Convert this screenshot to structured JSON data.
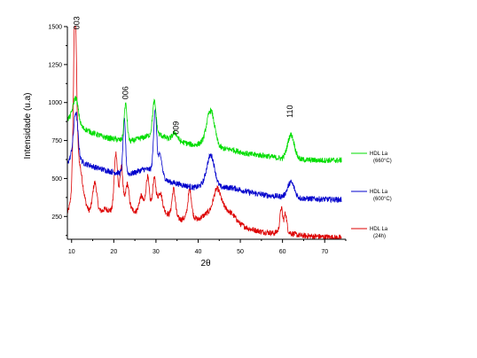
{
  "chart_data": {
    "type": "line",
    "xlabel": "2θ",
    "ylabel": "Intensidade (u.a)",
    "xlim": [
      9,
      75
    ],
    "ylim": [
      100,
      1500
    ],
    "x_ticks": [
      10,
      20,
      30,
      40,
      50,
      60,
      70
    ],
    "x_tick_labels": [
      "10",
      "20",
      "30",
      "40",
      "50",
      "60",
      "70"
    ],
    "y_ticks": [
      250,
      500,
      750,
      1000,
      1250,
      1500
    ],
    "grid": false,
    "legend_position": "right",
    "peak_labels": [
      {
        "text": "003",
        "x": 11.2,
        "y": 1480
      },
      {
        "text": "006",
        "x": 22.8,
        "y": 1020
      },
      {
        "text": "009",
        "x": 34.8,
        "y": 790
      },
      {
        "text": "110",
        "x": 61.8,
        "y": 900
      }
    ],
    "series": [
      {
        "name": "HDL La (24h)",
        "legend_lines": [
          "HDL La",
          "(24h)"
        ],
        "color": "#dd0000",
        "baseline": [
          [
            9,
            260
          ],
          [
            10,
            300
          ],
          [
            12,
            320
          ],
          [
            14,
            280
          ],
          [
            16,
            270
          ],
          [
            18,
            300
          ],
          [
            20,
            280
          ],
          [
            22,
            310
          ],
          [
            24,
            300
          ],
          [
            26,
            270
          ],
          [
            28,
            290
          ],
          [
            30,
            300
          ],
          [
            32,
            280
          ],
          [
            34,
            250
          ],
          [
            36,
            230
          ],
          [
            38,
            260
          ],
          [
            40,
            230
          ],
          [
            42,
            270
          ],
          [
            44,
            300
          ],
          [
            46,
            310
          ],
          [
            48,
            270
          ],
          [
            50,
            200
          ],
          [
            52,
            170
          ],
          [
            55,
            150
          ],
          [
            58,
            140
          ],
          [
            60,
            170
          ],
          [
            62,
            140
          ],
          [
            64,
            125
          ],
          [
            67,
            120
          ],
          [
            70,
            115
          ],
          [
            74,
            110
          ]
        ],
        "peaks": [
          [
            10.8,
            1100,
            0.35
          ],
          [
            11.5,
            300,
            1.0
          ],
          [
            15.5,
            200,
            0.5
          ],
          [
            20.5,
            380,
            0.4
          ],
          [
            21.8,
            280,
            0.35
          ],
          [
            23.2,
            160,
            0.4
          ],
          [
            26.5,
            110,
            0.5
          ],
          [
            28.0,
            220,
            0.4
          ],
          [
            29.6,
            200,
            0.4
          ],
          [
            31.0,
            120,
            0.5
          ],
          [
            34.2,
            180,
            0.4
          ],
          [
            38.0,
            170,
            0.4
          ],
          [
            44.5,
            130,
            0.8
          ],
          [
            59.7,
            140,
            0.3
          ],
          [
            60.7,
            110,
            0.3
          ]
        ]
      },
      {
        "name": "HDL La (600°C)",
        "legend_lines": [
          "HDL La",
          "(600°C)"
        ],
        "color": "#0000cc",
        "baseline": [
          [
            9,
            600
          ],
          [
            10,
            650
          ],
          [
            13,
            600
          ],
          [
            16,
            570
          ],
          [
            20,
            540
          ],
          [
            24,
            530
          ],
          [
            27,
            560
          ],
          [
            30,
            560
          ],
          [
            33,
            480
          ],
          [
            36,
            460
          ],
          [
            39,
            440
          ],
          [
            42,
            460
          ],
          [
            45,
            440
          ],
          [
            48,
            440
          ],
          [
            52,
            410
          ],
          [
            56,
            390
          ],
          [
            60,
            380
          ],
          [
            64,
            370
          ],
          [
            68,
            365
          ],
          [
            74,
            360
          ]
        ],
        "peaks": [
          [
            11.0,
            300,
            0.5
          ],
          [
            22.5,
            350,
            0.3
          ],
          [
            29.8,
            400,
            0.35
          ],
          [
            31.0,
            120,
            0.4
          ],
          [
            43.0,
            200,
            0.9
          ],
          [
            62.0,
            100,
            0.8
          ]
        ]
      },
      {
        "name": "HDL La (660°C)",
        "legend_lines": [
          "HDL La",
          "(660°C)"
        ],
        "color": "#00dd00",
        "baseline": [
          [
            9,
            890
          ],
          [
            10,
            900
          ],
          [
            12,
            840
          ],
          [
            15,
            800
          ],
          [
            18,
            770
          ],
          [
            21,
            755
          ],
          [
            24,
            745
          ],
          [
            27,
            770
          ],
          [
            30,
            800
          ],
          [
            33,
            760
          ],
          [
            36,
            740
          ],
          [
            39,
            720
          ],
          [
            42,
            740
          ],
          [
            45,
            700
          ],
          [
            48,
            690
          ],
          [
            52,
            660
          ],
          [
            56,
            650
          ],
          [
            60,
            630
          ],
          [
            64,
            625
          ],
          [
            68,
            620
          ],
          [
            74,
            620
          ]
        ],
        "peaks": [
          [
            11.0,
            160,
            0.6
          ],
          [
            22.8,
            240,
            0.35
          ],
          [
            29.6,
            210,
            0.4
          ],
          [
            34.5,
            50,
            0.6
          ],
          [
            43.0,
            220,
            0.9
          ],
          [
            62.0,
            160,
            0.8
          ]
        ]
      }
    ]
  }
}
